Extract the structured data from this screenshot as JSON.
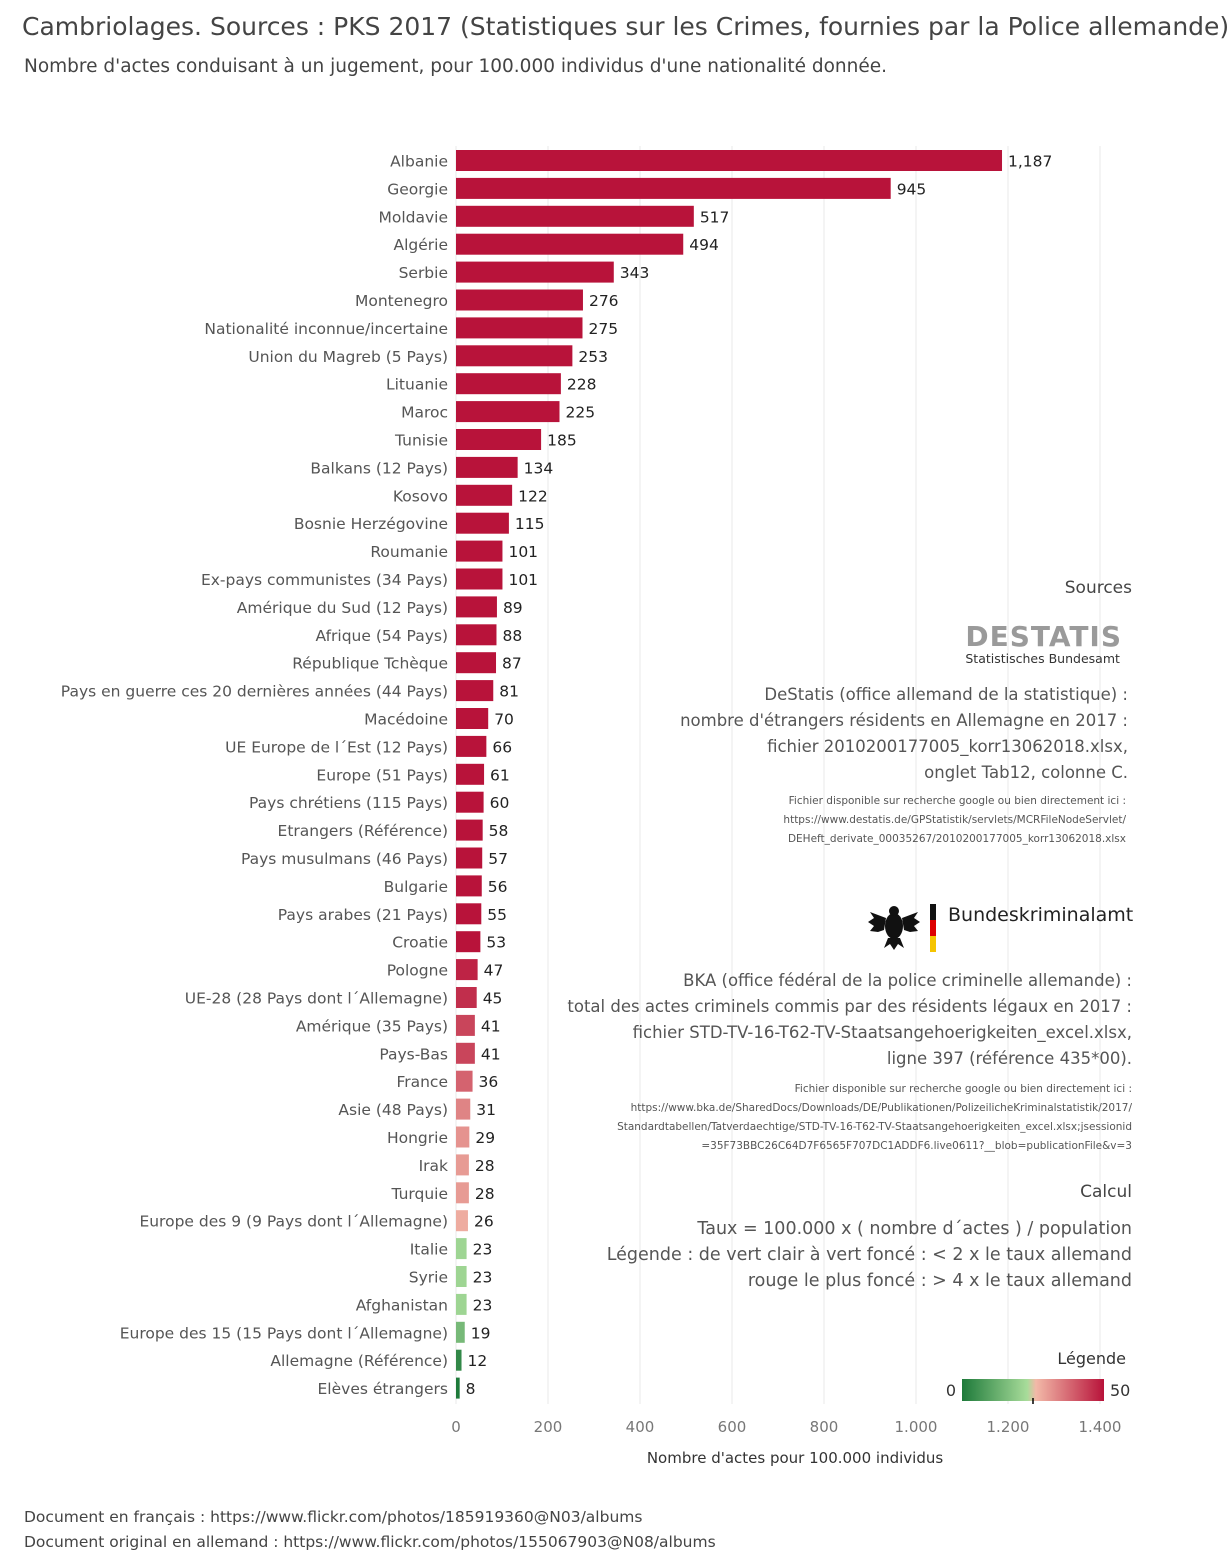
{
  "header": {
    "title": "Cambriolages. Sources : PKS 2017 (Statistiques sur les Crimes, fournies par la Police allemande)",
    "subtitle": "Nombre d'actes conduisant à un jugement, pour 100.000 individus d'une nationalité donnée."
  },
  "chart_data": {
    "type": "bar",
    "orientation": "horizontal",
    "xlabel": "Nombre d'actes pour 100.000 individus",
    "xlim": [
      0,
      1400
    ],
    "x_ticks": [
      "0",
      "200",
      "400",
      "600",
      "800",
      "1.000",
      "1.200",
      "1.400"
    ],
    "grid": "vertical",
    "categories": [
      "Albanie",
      "Georgie",
      "Moldavie",
      "Algérie",
      "Serbie",
      "Montenegro",
      "Nationalité inconnue/incertaine",
      "Union du Magreb (5 Pays)",
      "Lituanie",
      "Maroc",
      "Tunisie",
      "Balkans (12 Pays)",
      "Kosovo",
      "Bosnie Herzégovine",
      "Roumanie",
      "Ex-pays communistes (34 Pays)",
      "Amérique du Sud (12 Pays)",
      "Afrique (54 Pays)",
      "République Tchèque",
      "Pays en guerre ces 20 dernières années (44 Pays)",
      "Macédoine",
      "UE Europe de l´Est (12 Pays)",
      "Europe (51 Pays)",
      "Pays chrétiens (115 Pays)",
      "Etrangers (Référence)",
      "Pays musulmans (46 Pays)",
      "Bulgarie",
      "Pays arabes (21 Pays)",
      "Croatie",
      "Pologne",
      "UE-28 (28 Pays dont l´Allemagne)",
      "Amérique (35 Pays)",
      "Pays-Bas",
      "France",
      "Asie (48 Pays)",
      "Hongrie",
      "Irak",
      "Turquie",
      "Europe des 9 (9 Pays dont l´Allemagne)",
      "Italie",
      "Syrie",
      "Afghanistan",
      "Europe des 15 (15 Pays dont l´Allemagne)",
      "Allemagne (Référence)",
      "Elèves étrangers"
    ],
    "values": [
      1187,
      945,
      517,
      494,
      343,
      276,
      275,
      253,
      228,
      225,
      185,
      134,
      122,
      115,
      101,
      101,
      89,
      88,
      87,
      81,
      70,
      66,
      61,
      60,
      58,
      57,
      56,
      55,
      53,
      47,
      45,
      41,
      41,
      36,
      31,
      29,
      28,
      28,
      26,
      23,
      23,
      23,
      19,
      12,
      8
    ],
    "value_labels": [
      "1,187",
      "945",
      "517",
      "494",
      "343",
      "276",
      "275",
      "253",
      "228",
      "225",
      "185",
      "134",
      "122",
      "115",
      "101",
      "101",
      "89",
      "88",
      "87",
      "81",
      "70",
      "66",
      "61",
      "60",
      "58",
      "57",
      "56",
      "55",
      "53",
      "47",
      "45",
      "41",
      "41",
      "36",
      "31",
      "29",
      "28",
      "28",
      "26",
      "23",
      "23",
      "23",
      "19",
      "12",
      "8"
    ],
    "color_scale": {
      "title": "Légende",
      "min_label": "0",
      "max_label": "50",
      "min": 0,
      "max": 50,
      "midpoint": 24,
      "colors": [
        "#1e7a3a",
        "#a8dc9a",
        "#f2b9a8",
        "#b8133a"
      ]
    }
  },
  "sources": {
    "heading": "Sources",
    "destatis": {
      "logo_word": "DESTATIS",
      "logo_sub": "Statistisches Bundesamt",
      "lines": [
        "DeStatis (office allemand de la statistique) :",
        "nombre d'étrangers résidents en Allemagne en 2017 :",
        "fichier 2010200177005_korr13062018.xlsx,",
        "onglet Tab12, colonne C."
      ],
      "small_lines": [
        "Fichier disponible sur recherche google ou bien directement ici :",
        "https://www.destatis.de/GPStatistik/servlets/MCRFileNodeServlet/",
        "DEHeft_derivate_00035267/2010200177005_korr13062018.xlsx"
      ]
    },
    "bka": {
      "logo_word": "Bundeskriminalamt",
      "lines": [
        "BKA (office fédéral de la police criminelle allemande) :",
        "total des actes criminels commis par des résidents légaux en 2017 :",
        "fichier STD-TV-16-T62-TV-Staatsangehoerigkeiten_excel.xlsx,",
        "ligne 397 (référence 435*00)."
      ],
      "small_lines": [
        "Fichier disponible sur recherche google ou bien directement ici :",
        "https://www.bka.de/SharedDocs/Downloads/DE/Publikationen/PolizeilicheKriminalstatistik/2017/",
        "Standardtabellen/Tatverdaechtige/STD-TV-16-T62-TV-Staatsangehoerigkeiten_excel.xlsx;jsessionid",
        "=35F73BBC26C64D7F6565F707DC1ADDF6.live0611?__blob=publicationFile&v=3"
      ]
    }
  },
  "calcul": {
    "heading": "Calcul",
    "lines": [
      "Taux = 100.000 x ( nombre d´actes ) / population",
      "Légende : de vert clair à vert foncé : < 2 x le taux allemand",
      "rouge le plus foncé : > 4 x le taux allemand"
    ]
  },
  "footer": {
    "line1": "Document en français : https://www.flickr.com/photos/185919360@N03/albums",
    "line2": "Document original en allemand : https://www.flickr.com/photos/155067903@N08/albums"
  }
}
